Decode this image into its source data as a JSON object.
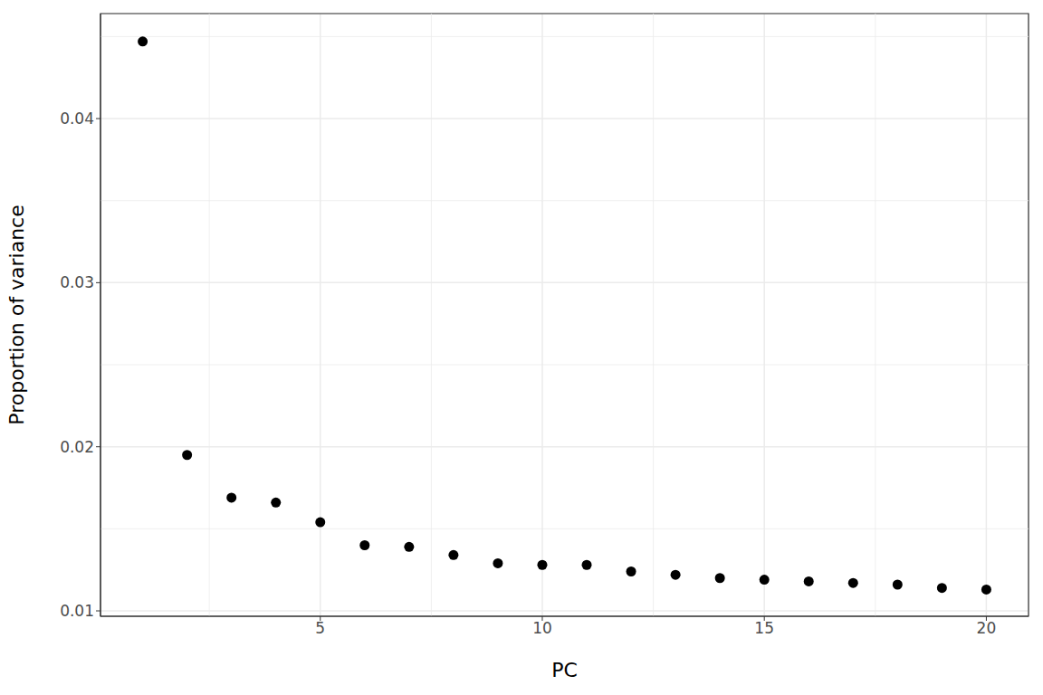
{
  "chart_data": {
    "type": "scatter",
    "xlabel": "PC",
    "ylabel": "Proportion of variance",
    "x": [
      1,
      2,
      3,
      4,
      5,
      6,
      7,
      8,
      9,
      10,
      11,
      12,
      13,
      14,
      15,
      16,
      17,
      18,
      19,
      20
    ],
    "values": [
      0.0447,
      0.0195,
      0.0169,
      0.0166,
      0.0154,
      0.014,
      0.0139,
      0.0134,
      0.0129,
      0.0128,
      0.0128,
      0.0124,
      0.0122,
      0.012,
      0.0119,
      0.0118,
      0.0117,
      0.0116,
      0.0114,
      0.0113
    ],
    "xlim": [
      0.05,
      20.95
    ],
    "ylim": [
      0.00967,
      0.0464
    ],
    "xticks": [
      5,
      10,
      15,
      20
    ],
    "yticks": [
      0.01,
      0.02,
      0.03,
      0.04
    ],
    "grid": true,
    "color": "#000000",
    "marker": "circle"
  }
}
